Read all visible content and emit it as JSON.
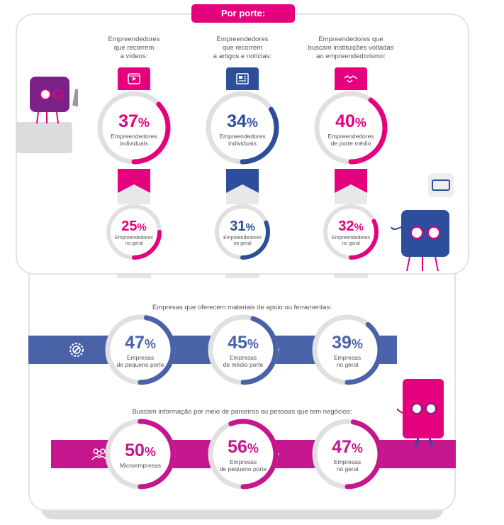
{
  "header": {
    "title": "Por porte:"
  },
  "top_columns": [
    {
      "label": "Empreendedores\nque recorrem\na vídeos:",
      "icon": "video-icon",
      "color": "#e5007e",
      "upper": {
        "value": "37",
        "unit": "%",
        "caption": "Empreendedores\nindividuais",
        "fraction": 0.37
      },
      "lower": {
        "value": "25",
        "unit": "%",
        "caption": "Empreendedores\nno geral",
        "fraction": 0.25
      }
    },
    {
      "label": "Empreendedores\nque recorrem\na artigos e notícias:",
      "icon": "newspaper-icon",
      "color": "#2d4e9a",
      "upper": {
        "value": "34",
        "unit": "%",
        "caption": "Empreendedores\nindividuais",
        "fraction": 0.34
      },
      "lower": {
        "value": "31",
        "unit": "%",
        "caption": "Empreendedores\nno geral",
        "fraction": 0.31
      }
    },
    {
      "label": "Empreendedores que\nbuscam instituições voltadas\nao empreendedorismo:",
      "icon": "handshake-icon",
      "color": "#e5007e",
      "upper": {
        "value": "40",
        "unit": "%",
        "caption": "Empreendedores\nde porte médio",
        "fraction": 0.4
      },
      "lower": {
        "value": "32",
        "unit": "%",
        "caption": "Empreendedores\nno geral",
        "fraction": 0.32
      }
    }
  ],
  "support_section": {
    "title": "Empresas que oferecem materiais de apoio ou ferramentas:",
    "icon": "gear-tool-icon",
    "color": "#4a63a8",
    "items": [
      {
        "value": "47",
        "unit": "%",
        "caption": "Empresas\nde pequeno porte",
        "fraction": 0.47
      },
      {
        "value": "45",
        "unit": "%",
        "caption": "Empresas\nde médio porte",
        "fraction": 0.45
      },
      {
        "value": "39",
        "unit": "%",
        "caption": "Empresas\nno geral",
        "fraction": 0.39
      }
    ]
  },
  "partners_section": {
    "title": "Buscam informação por meio de parceiros ou pessoas que tem negócios:",
    "icon": "people-group-icon",
    "color": "#c5168d",
    "items": [
      {
        "value": "50",
        "unit": "%",
        "caption": "Microempresas",
        "fraction": 0.5
      },
      {
        "value": "56",
        "unit": "%",
        "caption": "Empresas\nde pequeno porte",
        "fraction": 0.56
      },
      {
        "value": "47",
        "unit": "%",
        "caption": "Empresas\nno geral",
        "fraction": 0.47
      }
    ]
  }
}
